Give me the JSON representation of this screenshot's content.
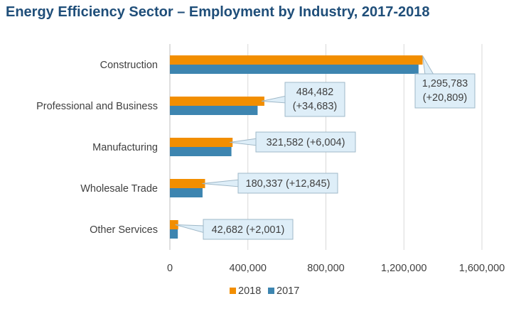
{
  "chart_data": {
    "type": "bar",
    "orientation": "horizontal",
    "title": "Energy Efficiency Sector – Employment by Industry, 2017-2018",
    "categories": [
      "Construction",
      "Professional and Business",
      "Manufacturing",
      "Wholesale Trade",
      "Other Services"
    ],
    "series": [
      {
        "name": "2018",
        "color": "#f28e00",
        "values": [
          1295783,
          484482,
          321582,
          180337,
          42682
        ]
      },
      {
        "name": "2017",
        "color": "#3d85b0",
        "values": [
          1274974,
          449799,
          315578,
          167492,
          40681
        ]
      }
    ],
    "data_labels": [
      [
        "1,295,783",
        "(+20,809)"
      ],
      [
        "484,482",
        "(+34,683)"
      ],
      [
        "321,582 (+6,004)"
      ],
      [
        "180,337 (+12,845)"
      ],
      [
        "42,682 (+2,001)"
      ]
    ],
    "xlim": [
      0,
      1600000
    ],
    "xticks": [
      0,
      400000,
      800000,
      1200000,
      1600000
    ],
    "xtick_labels": [
      "0",
      "400,000",
      "800,000",
      "1,200,000",
      "1,600,000"
    ],
    "grid": true,
    "legend": "bottom",
    "xlabel": "",
    "ylabel": ""
  }
}
